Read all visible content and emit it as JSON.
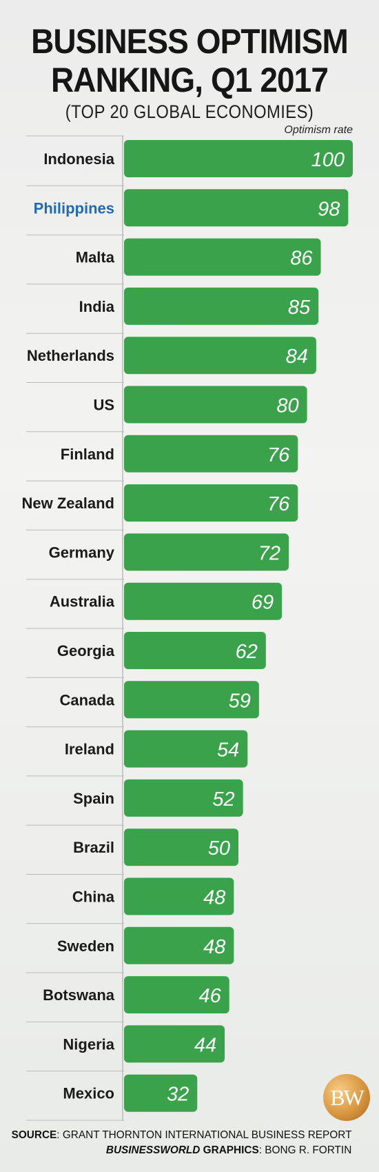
{
  "title_line1": "BUSINESS OPTIMISM",
  "title_line2": "RANKING, Q1 2017",
  "subtitle": "(TOP 20 GLOBAL ECONOMIES)",
  "value_label": "Optimism rate",
  "source_label": "SOURCE",
  "source_text": ": GRANT THORNTON INTERNATIONAL BUSINESS REPORT",
  "credit_brand": "BUSINESSWORLD",
  "credit_text": " GRAPHICS",
  "credit_author": ": BONG R. FORTIN",
  "logo_text": "BW",
  "colors": {
    "bar": "#3aa24a",
    "highlight": "#1f6ab3",
    "label": "#1a1a1a",
    "separator": "#b9b9b9"
  },
  "chart_data": {
    "type": "bar",
    "orientation": "horizontal",
    "title": "BUSINESS OPTIMISM RANKING, Q1 2017",
    "subtitle": "(TOP 20 GLOBAL ECONOMIES)",
    "ylabel": "Optimism rate",
    "xlim": [
      0,
      100
    ],
    "highlighted_category": "Philippines",
    "categories": [
      "Indonesia",
      "Philippines",
      "Malta",
      "India",
      "Netherlands",
      "US",
      "Finland",
      "New Zealand",
      "Germany",
      "Australia",
      "Georgia",
      "Canada",
      "Ireland",
      "Spain",
      "Brazil",
      "China",
      "Sweden",
      "Botswana",
      "Nigeria",
      "Mexico"
    ],
    "values": [
      100,
      98,
      86,
      85,
      84,
      80,
      76,
      76,
      72,
      69,
      62,
      59,
      54,
      52,
      50,
      48,
      48,
      46,
      44,
      32
    ]
  }
}
